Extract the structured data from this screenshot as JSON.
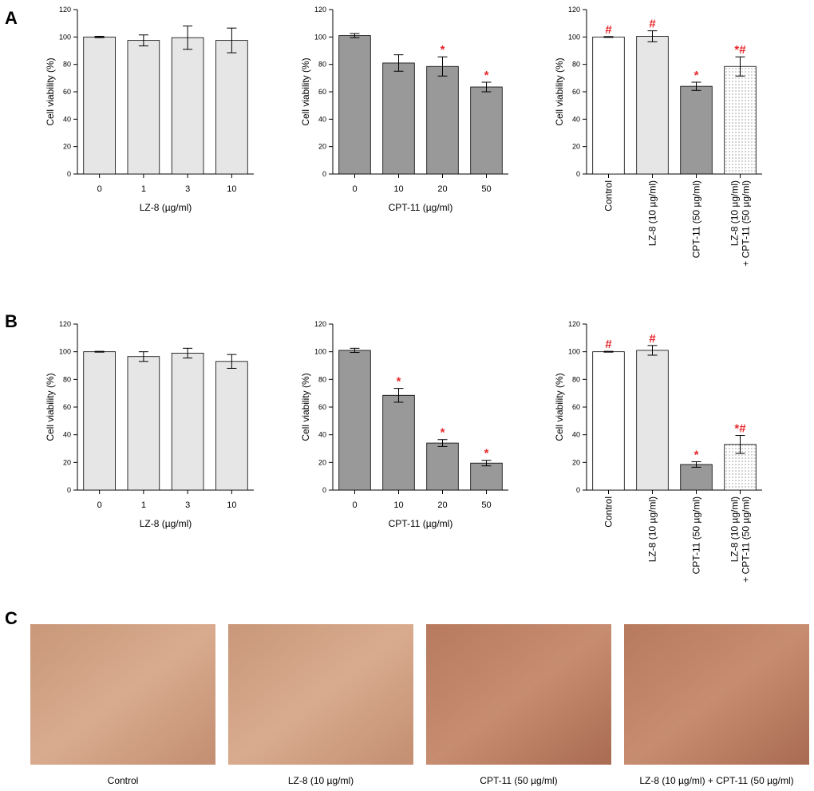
{
  "panels": [
    "A",
    "B",
    "C"
  ],
  "chart_data": [
    {
      "type": "bar",
      "ylabel": "Cell viability (%)",
      "xlabel": "LZ-8 (µg/ml)",
      "categories": [
        "0",
        "1",
        "3",
        "10"
      ],
      "values": [
        100,
        97.5,
        99.5,
        97.5
      ],
      "errors": [
        0.5,
        4,
        8.5,
        9
      ],
      "colors": [
        "#e6e6e6",
        "#e6e6e6",
        "#e6e6e6",
        "#e6e6e6"
      ],
      "ylim": [
        0,
        120
      ],
      "yticks": [
        0,
        20,
        40,
        60,
        80,
        100,
        120
      ]
    },
    {
      "type": "bar",
      "ylabel": "Cell viability (%)",
      "xlabel": "CPT-11 (µg/ml)",
      "categories": [
        "0",
        "10",
        "20",
        "50"
      ],
      "values": [
        101,
        81,
        78.5,
        63.5
      ],
      "errors": [
        1.5,
        6,
        7,
        3.5
      ],
      "colors": [
        "#999999",
        "#999999",
        "#999999",
        "#999999"
      ],
      "annotations": [
        null,
        null,
        "*",
        "*"
      ],
      "ylim": [
        0,
        120
      ],
      "yticks": [
        0,
        20,
        40,
        60,
        80,
        100,
        120
      ]
    },
    {
      "type": "bar",
      "ylabel": "Cell viability (%)",
      "categories": [
        "Control",
        "LZ-8 (10 µg/ml)",
        "CPT-11 (50 µg/ml)",
        "LZ-8 (10 µg/ml)\n+ CPT-11 (50 µg/ml)"
      ],
      "values": [
        100,
        100.5,
        64,
        78.5
      ],
      "errors": [
        0.3,
        4,
        3,
        7
      ],
      "colors": [
        "#ffffff",
        "#e6e6e6",
        "#999999",
        "#ffffff"
      ],
      "patterns": [
        null,
        null,
        null,
        "dots"
      ],
      "annotations": [
        "#",
        "#",
        "*",
        "*#"
      ],
      "rotated_labels": true,
      "ylim": [
        0,
        120
      ],
      "yticks": [
        0,
        20,
        40,
        60,
        80,
        100,
        120
      ]
    },
    {
      "type": "bar",
      "ylabel": "Cell viability (%)",
      "xlabel": "LZ-8 (µg/ml)",
      "categories": [
        "0",
        "1",
        "3",
        "10"
      ],
      "values": [
        100,
        96.5,
        99,
        93
      ],
      "errors": [
        0.3,
        3.5,
        3.5,
        5
      ],
      "colors": [
        "#e6e6e6",
        "#e6e6e6",
        "#e6e6e6",
        "#e6e6e6"
      ],
      "ylim": [
        0,
        120
      ],
      "yticks": [
        0,
        20,
        40,
        60,
        80,
        100,
        120
      ]
    },
    {
      "type": "bar",
      "ylabel": "Cell viability (%)",
      "xlabel": "CPT-11 (µg/ml)",
      "categories": [
        "0",
        "10",
        "20",
        "50"
      ],
      "values": [
        101,
        68.5,
        34,
        19.5
      ],
      "errors": [
        1.5,
        5,
        2.5,
        2
      ],
      "colors": [
        "#999999",
        "#999999",
        "#999999",
        "#999999"
      ],
      "annotations": [
        null,
        "*",
        "*",
        "*"
      ],
      "ylim": [
        0,
        120
      ],
      "yticks": [
        0,
        20,
        40,
        60,
        80,
        100,
        120
      ]
    },
    {
      "type": "bar",
      "ylabel": "Cell viability (%)",
      "categories": [
        "Control",
        "LZ-8 (10 µg/ml)",
        "CPT-11 (50 µg/ml)",
        "LZ-8 (10 µg/ml)\n+ CPT-11 (50 µg/ml)"
      ],
      "values": [
        100,
        101,
        18.5,
        33
      ],
      "errors": [
        0.3,
        3.5,
        2,
        6.5
      ],
      "colors": [
        "#ffffff",
        "#e6e6e6",
        "#999999",
        "#ffffff"
      ],
      "patterns": [
        null,
        null,
        null,
        "dots"
      ],
      "annotations": [
        "#",
        "#",
        "*",
        "*#"
      ],
      "rotated_labels": true,
      "ylim": [
        0,
        120
      ],
      "yticks": [
        0,
        20,
        40,
        60,
        80,
        100,
        120
      ]
    }
  ],
  "images": [
    {
      "caption": "Control"
    },
    {
      "caption": "LZ-8 (10 µg/ml)"
    },
    {
      "caption": "CPT-11 (50 µg/ml)"
    },
    {
      "caption": "LZ-8 (10 µg/ml) + CPT-11 (50 µg/ml)"
    }
  ]
}
